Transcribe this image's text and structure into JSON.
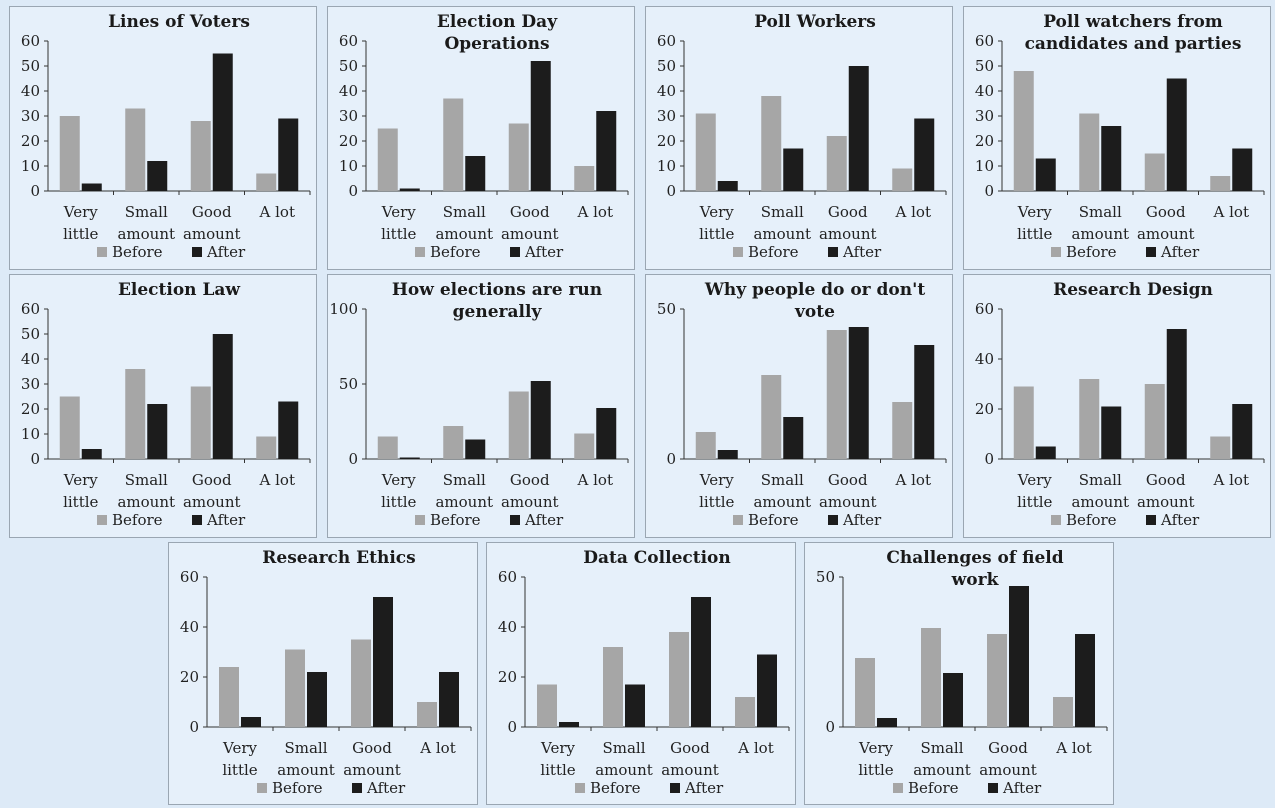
{
  "colors": {
    "before": "#a6a6a6",
    "after": "#1c1c1c",
    "axis": "#333333"
  },
  "legend": {
    "before": "Before",
    "after": "After"
  },
  "chart_data": [
    {
      "type": "bar",
      "title": [
        "Lines of Voters"
      ],
      "categories": [
        [
          "Very",
          "little"
        ],
        [
          "Small",
          "amount"
        ],
        [
          "Good",
          "amount"
        ],
        [
          "A lot"
        ]
      ],
      "series": [
        {
          "name": "Before",
          "values": [
            30,
            33,
            28,
            7
          ]
        },
        {
          "name": "After",
          "values": [
            3,
            12,
            55,
            29
          ]
        }
      ],
      "ylim": [
        0,
        60
      ],
      "yticks": [
        0,
        10,
        20,
        30,
        40,
        50,
        60
      ],
      "legend_position": "bottom",
      "grid": false
    },
    {
      "type": "bar",
      "title": [
        "Election Day",
        "Operations"
      ],
      "categories": [
        [
          "Very",
          "little"
        ],
        [
          "Small",
          "amount"
        ],
        [
          "Good",
          "amount"
        ],
        [
          "A lot"
        ]
      ],
      "series": [
        {
          "name": "Before",
          "values": [
            25,
            37,
            27,
            10
          ]
        },
        {
          "name": "After",
          "values": [
            1,
            14,
            52,
            32
          ]
        }
      ],
      "ylim": [
        0,
        60
      ],
      "yticks": [
        0,
        10,
        20,
        30,
        40,
        50,
        60
      ],
      "legend_position": "bottom",
      "grid": false
    },
    {
      "type": "bar",
      "title": [
        "Poll Workers"
      ],
      "categories": [
        [
          "Very",
          "little"
        ],
        [
          "Small",
          "amount"
        ],
        [
          "Good",
          "amount"
        ],
        [
          "A lot"
        ]
      ],
      "series": [
        {
          "name": "Before",
          "values": [
            31,
            38,
            22,
            9
          ]
        },
        {
          "name": "After",
          "values": [
            4,
            17,
            50,
            29
          ]
        }
      ],
      "ylim": [
        0,
        60
      ],
      "yticks": [
        0,
        10,
        20,
        30,
        40,
        50,
        60
      ],
      "legend_position": "bottom",
      "grid": false
    },
    {
      "type": "bar",
      "title": [
        "Poll watchers from",
        "candidates and parties"
      ],
      "categories": [
        [
          "Very",
          "little"
        ],
        [
          "Small",
          "amount"
        ],
        [
          "Good",
          "amount"
        ],
        [
          "A lot"
        ]
      ],
      "series": [
        {
          "name": "Before",
          "values": [
            48,
            31,
            15,
            6
          ]
        },
        {
          "name": "After",
          "values": [
            13,
            26,
            45,
            17
          ]
        }
      ],
      "ylim": [
        0,
        60
      ],
      "yticks": [
        0,
        10,
        20,
        30,
        40,
        50,
        60
      ],
      "legend_position": "bottom",
      "grid": false
    },
    {
      "type": "bar",
      "title": [
        "Election Law"
      ],
      "categories": [
        [
          "Very",
          "little"
        ],
        [
          "Small",
          "amount"
        ],
        [
          "Good",
          "amount"
        ],
        [
          "A lot"
        ]
      ],
      "series": [
        {
          "name": "Before",
          "values": [
            25,
            36,
            29,
            9
          ]
        },
        {
          "name": "After",
          "values": [
            4,
            22,
            50,
            23
          ]
        }
      ],
      "ylim": [
        0,
        60
      ],
      "yticks": [
        0,
        10,
        20,
        30,
        40,
        50,
        60
      ],
      "legend_position": "bottom",
      "grid": false
    },
    {
      "type": "bar",
      "title": [
        "How elections are run",
        "generally"
      ],
      "categories": [
        [
          "Very",
          "little"
        ],
        [
          "Small",
          "amount"
        ],
        [
          "Good",
          "amount"
        ],
        [
          "A lot"
        ]
      ],
      "series": [
        {
          "name": "Before",
          "values": [
            15,
            22,
            45,
            17
          ]
        },
        {
          "name": "After",
          "values": [
            1,
            13,
            52,
            34
          ]
        }
      ],
      "ylim": [
        0,
        100
      ],
      "yticks": [
        0,
        50,
        100
      ],
      "legend_position": "bottom",
      "grid": false
    },
    {
      "type": "bar",
      "title": [
        "Why people do or don't",
        "vote"
      ],
      "categories": [
        [
          "Very",
          "little"
        ],
        [
          "Small",
          "amount"
        ],
        [
          "Good",
          "amount"
        ],
        [
          "A lot"
        ]
      ],
      "series": [
        {
          "name": "Before",
          "values": [
            9,
            28,
            43,
            19
          ]
        },
        {
          "name": "After",
          "values": [
            3,
            14,
            44,
            38
          ]
        }
      ],
      "ylim": [
        0,
        50
      ],
      "yticks": [
        0,
        50
      ],
      "legend_position": "bottom",
      "grid": false
    },
    {
      "type": "bar",
      "title": [
        "Research Design"
      ],
      "categories": [
        [
          "Very",
          "little"
        ],
        [
          "Small",
          "amount"
        ],
        [
          "Good",
          "amount"
        ],
        [
          "A lot"
        ]
      ],
      "series": [
        {
          "name": "Before",
          "values": [
            29,
            32,
            30,
            9
          ]
        },
        {
          "name": "After",
          "values": [
            5,
            21,
            52,
            22
          ]
        }
      ],
      "ylim": [
        0,
        60
      ],
      "yticks": [
        0,
        20,
        40,
        60
      ],
      "legend_position": "bottom",
      "grid": false
    },
    {
      "type": "bar",
      "title": [
        "Research Ethics"
      ],
      "categories": [
        [
          "Very",
          "little"
        ],
        [
          "Small",
          "amount"
        ],
        [
          "Good",
          "amount"
        ],
        [
          "A lot"
        ]
      ],
      "series": [
        {
          "name": "Before",
          "values": [
            24,
            31,
            35,
            10
          ]
        },
        {
          "name": "After",
          "values": [
            4,
            22,
            52,
            22
          ]
        }
      ],
      "ylim": [
        0,
        60
      ],
      "yticks": [
        0,
        20,
        40,
        60
      ],
      "legend_position": "bottom",
      "grid": false
    },
    {
      "type": "bar",
      "title": [
        "Data Collection"
      ],
      "categories": [
        [
          "Very",
          "little"
        ],
        [
          "Small",
          "amount"
        ],
        [
          "Good",
          "amount"
        ],
        [
          "A lot"
        ]
      ],
      "series": [
        {
          "name": "Before",
          "values": [
            17,
            32,
            38,
            12
          ]
        },
        {
          "name": "After",
          "values": [
            2,
            17,
            52,
            29
          ]
        }
      ],
      "ylim": [
        0,
        60
      ],
      "yticks": [
        0,
        20,
        40,
        60
      ],
      "legend_position": "bottom",
      "grid": false
    },
    {
      "type": "bar",
      "title": [
        "Challenges of field",
        "work"
      ],
      "categories": [
        [
          "Very",
          "little"
        ],
        [
          "Small",
          "amount"
        ],
        [
          "Good",
          "amount"
        ],
        [
          "A lot"
        ]
      ],
      "series": [
        {
          "name": "Before",
          "values": [
            23,
            33,
            31,
            10
          ]
        },
        {
          "name": "After",
          "values": [
            3,
            18,
            47,
            31
          ]
        }
      ],
      "ylim": [
        0,
        50
      ],
      "yticks": [
        0,
        50
      ],
      "legend_position": "bottom",
      "grid": false
    }
  ]
}
